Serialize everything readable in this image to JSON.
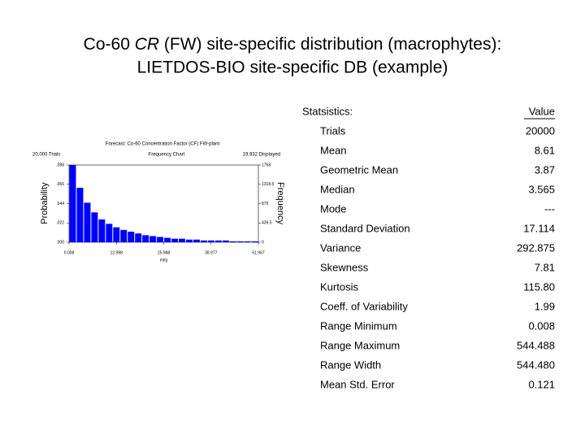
{
  "title": {
    "pre": "Co-60 ",
    "italic": "CR",
    "post": " (FW) site-specific distribution (macrophytes):",
    "line2": "LIETDOS-BIO site-specific DB (example)"
  },
  "chart": {
    "type": "histogram",
    "title": "Forecast: Co-60 Concentration Factor (CF) FW-plant",
    "subtitle": "Frequency Chart",
    "trials_label": "20,000 Trials",
    "displayed_label": "19,932 Displayed",
    "y_label": "Probability",
    "y2_label": "Frequency",
    "x_label": "ml/g",
    "color": "#0000ff",
    "bins": [
      0.008,
      2.008,
      4.008,
      6.008,
      8.008,
      10.008,
      12.008,
      14.008,
      16.008,
      18.008,
      20.008,
      22.008,
      24.008,
      26.008,
      28.008,
      30.008,
      32.008,
      34.008,
      36.008,
      38.008,
      40.008,
      42.008,
      44.008,
      46.008,
      48.008,
      50.008,
      51.967
    ],
    "values": [
      0.088,
      0.062,
      0.045,
      0.034,
      0.026,
      0.021,
      0.017,
      0.014,
      0.012,
      0.01,
      0.008,
      0.007,
      0.006,
      0.005,
      0.004,
      0.004,
      0.003,
      0.003,
      0.002,
      0.002,
      0.002,
      0.002,
      0.001,
      0.001,
      0.001,
      0.001
    ],
    "xlim": [
      0.008,
      51.967
    ],
    "xticks": [
      0.008,
      12.998,
      25.988,
      38.977,
      51.967
    ],
    "ylim": [
      0,
      0.088
    ],
    "yticks": [
      {
        "value": 0,
        "label": ".000"
      },
      {
        "value": 0.022,
        "label": ".022"
      },
      {
        "value": 0.044,
        "label": ".044"
      },
      {
        "value": 0.066,
        "label": ".066"
      },
      {
        "value": 0.088,
        "label": ".088"
      }
    ],
    "y2lim": [
      0,
      1758
    ],
    "y2ticks": [
      0,
      439.5,
      879,
      1318.5,
      1758
    ]
  },
  "table": {
    "header": [
      "Statsistics:",
      "Value"
    ],
    "rows": [
      [
        "Trials",
        "20000"
      ],
      [
        "Mean",
        "8.61"
      ],
      [
        "Geometric Mean",
        "3.87"
      ],
      [
        "Median",
        "3.565"
      ],
      [
        "Mode",
        "---"
      ],
      [
        "Standard Deviation",
        "17.114"
      ],
      [
        "Variance",
        "292.875"
      ],
      [
        "Skewness",
        "7.81"
      ],
      [
        "Kurtosis",
        "115.80"
      ],
      [
        "Coeff. of Variability",
        "1.99"
      ],
      [
        "Range Minimum",
        "0.008"
      ],
      [
        "Range Maximum",
        "544.488"
      ],
      [
        "Range Width",
        "544.480"
      ],
      [
        "Mean Std. Error",
        "0.121"
      ]
    ]
  }
}
